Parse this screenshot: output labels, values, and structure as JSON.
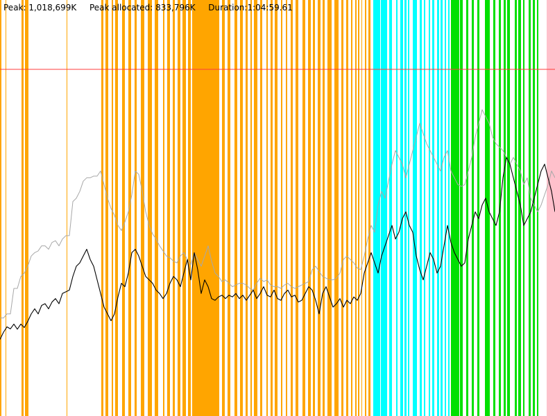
{
  "header": {
    "peak": "Peak: 1,018,699K",
    "peak_allocated": "Peak allocated: 833,796K",
    "duration": "Duration:1:04:59.61"
  },
  "chart_data": {
    "type": "line",
    "title": "",
    "xlabel": "",
    "ylabel": "",
    "x_range": [
      0,
      800
    ],
    "y_range": [
      0,
      1018699
    ],
    "grid": false,
    "legend": "none",
    "colors": {
      "background": "#ffffff",
      "peak_line": "#ff3b3b",
      "upper_series": "#a8a8a8",
      "main_series": "#000000",
      "orange": "#ffa500",
      "cyan": "#00ffff",
      "green": "#00e000",
      "pink": "#ffc0cb"
    },
    "bands": [
      {
        "color": "orange",
        "spans": [
          [
            0,
            2
          ],
          [
            8,
            9
          ],
          [
            31,
            34
          ],
          [
            36,
            41
          ],
          [
            96,
            97
          ],
          [
            146,
            149
          ],
          [
            152,
            156
          ],
          [
            161,
            163
          ],
          [
            166,
            170
          ],
          [
            176,
            180
          ],
          [
            185,
            189
          ],
          [
            194,
            197
          ],
          [
            203,
            208
          ],
          [
            213,
            219
          ],
          [
            223,
            228
          ],
          [
            235,
            237
          ],
          [
            241,
            245
          ],
          [
            249,
            252
          ],
          [
            256,
            260
          ],
          [
            263,
            268
          ],
          [
            271,
            275
          ],
          [
            277,
            316
          ],
          [
            320,
            324
          ],
          [
            328,
            332
          ],
          [
            338,
            342
          ],
          [
            346,
            350
          ],
          [
            354,
            357
          ],
          [
            361,
            363
          ],
          [
            366,
            371
          ],
          [
            375,
            378
          ],
          [
            384,
            386
          ],
          [
            390,
            393
          ],
          [
            396,
            400
          ],
          [
            405,
            407
          ],
          [
            412,
            414
          ],
          [
            419,
            422
          ],
          [
            426,
            430
          ],
          [
            436,
            440
          ],
          [
            444,
            448
          ],
          [
            451,
            454
          ],
          [
            458,
            462
          ],
          [
            465,
            468
          ],
          [
            472,
            478
          ],
          [
            482,
            488
          ],
          [
            492,
            495
          ],
          [
            499,
            502
          ],
          [
            506,
            508
          ],
          [
            512,
            514
          ],
          [
            516,
            518
          ],
          [
            521,
            522
          ],
          [
            526,
            528
          ],
          [
            531,
            534
          ]
        ]
      },
      {
        "color": "cyan",
        "spans": [
          [
            538,
            548
          ],
          [
            549,
            558
          ],
          [
            561,
            565
          ],
          [
            571,
            573
          ],
          [
            577,
            581
          ],
          [
            583,
            586
          ],
          [
            588,
            590
          ],
          [
            595,
            601
          ],
          [
            605,
            608
          ],
          [
            611,
            613
          ],
          [
            618,
            620
          ],
          [
            623,
            626
          ],
          [
            630,
            633
          ],
          [
            635,
            638
          ],
          [
            641,
            643
          ],
          [
            646,
            648
          ]
        ]
      },
      {
        "color": "green",
        "spans": [
          [
            650,
            662
          ],
          [
            663,
            667
          ],
          [
            672,
            675
          ],
          [
            680,
            683
          ],
          [
            688,
            691
          ],
          [
            699,
            706
          ],
          [
            711,
            714
          ],
          [
            719,
            722
          ],
          [
            726,
            729
          ],
          [
            731,
            735
          ],
          [
            742,
            745
          ],
          [
            747,
            751
          ],
          [
            754,
            756
          ],
          [
            762,
            765
          ],
          [
            768,
            771
          ],
          [
            774,
            776
          ]
        ]
      },
      {
        "color": "pink",
        "spans": [
          [
            788,
            800
          ]
        ]
      }
    ],
    "series": [
      {
        "id": "upper",
        "x": [
          0,
          5,
          10,
          15,
          20,
          25,
          30,
          35,
          40,
          45,
          50,
          55,
          60,
          65,
          70,
          75,
          80,
          85,
          90,
          95,
          100,
          105,
          110,
          115,
          120,
          125,
          130,
          135,
          140,
          145,
          150,
          155,
          160,
          165,
          170,
          175,
          180,
          185,
          190,
          195,
          200,
          205,
          210,
          215,
          220,
          225,
          230,
          235,
          240,
          245,
          250,
          255,
          260,
          265,
          270,
          275,
          280,
          285,
          290,
          295,
          300,
          305,
          310,
          315,
          320,
          325,
          330,
          335,
          340,
          345,
          350,
          355,
          360,
          365,
          370,
          375,
          380,
          385,
          390,
          395,
          400,
          405,
          410,
          415,
          420,
          425,
          430,
          435,
          440,
          445,
          450,
          455,
          460,
          465,
          470,
          475,
          480,
          485,
          490,
          495,
          500,
          505,
          510,
          515,
          520,
          525,
          530,
          535,
          540,
          545,
          550,
          555,
          560,
          565,
          570,
          575,
          580,
          585,
          590,
          595,
          600,
          605,
          610,
          615,
          620,
          625,
          630,
          635,
          640,
          645,
          650,
          655,
          660,
          665,
          670,
          675,
          680,
          685,
          690,
          695,
          700,
          705,
          710,
          715,
          720,
          725,
          730,
          735,
          740,
          745,
          750,
          755,
          760,
          765,
          770,
          775,
          780,
          785,
          790,
          795,
          800
        ],
        "y": [
          288000,
          288000,
          300000,
          300000,
          375000,
          375000,
          410000,
          420000,
          440000,
          470000,
          480000,
          485000,
          500000,
          500000,
          490000,
          510000,
          515000,
          500000,
          520000,
          530000,
          530000,
          630000,
          640000,
          660000,
          690000,
          700000,
          700000,
          705000,
          705000,
          720000,
          680000,
          640000,
          610000,
          590000,
          560000,
          545000,
          570000,
          600000,
          650000,
          720000,
          710000,
          660000,
          600000,
          560000,
          535000,
          520000,
          500000,
          485000,
          470000,
          465000,
          455000,
          450000,
          470000,
          480000,
          460000,
          445000,
          480000,
          460000,
          440000,
          470000,
          500000,
          455000,
          420000,
          410000,
          395000,
          400000,
          390000,
          380000,
          385000,
          390000,
          390000,
          385000,
          375000,
          370000,
          390000,
          405000,
          395000,
          400000,
          385000,
          380000,
          380000,
          375000,
          385000,
          390000,
          380000,
          375000,
          380000,
          385000,
          390000,
          395000,
          430000,
          440000,
          425000,
          410000,
          405000,
          400000,
          400000,
          405000,
          420000,
          460000,
          470000,
          460000,
          450000,
          435000,
          430000,
          470000,
          520000,
          560000,
          540000,
          620000,
          660000,
          640000,
          690000,
          740000,
          780000,
          760000,
          740000,
          700000,
          740000,
          780000,
          820000,
          860000,
          830000,
          800000,
          780000,
          760000,
          740000,
          720000,
          760000,
          780000,
          720000,
          700000,
          680000,
          675000,
          680000,
          720000,
          760000,
          820000,
          860000,
          900000,
          880000,
          860000,
          820000,
          800000,
          790000,
          780000,
          760000,
          740000,
          760000,
          740000,
          720000,
          680000,
          700000,
          640000,
          620000,
          600000,
          620000,
          650000,
          680000,
          720000,
          700000
        ]
      },
      {
        "id": "main",
        "x": [
          0,
          5,
          10,
          15,
          20,
          25,
          30,
          35,
          40,
          45,
          50,
          55,
          60,
          65,
          70,
          75,
          80,
          85,
          90,
          95,
          100,
          105,
          110,
          115,
          120,
          125,
          130,
          135,
          140,
          145,
          150,
          155,
          160,
          165,
          170,
          175,
          180,
          185,
          190,
          195,
          200,
          205,
          210,
          215,
          220,
          225,
          230,
          235,
          240,
          245,
          250,
          255,
          260,
          265,
          270,
          275,
          280,
          285,
          290,
          295,
          300,
          305,
          310,
          315,
          320,
          325,
          330,
          335,
          340,
          345,
          350,
          355,
          360,
          365,
          370,
          375,
          380,
          385,
          390,
          395,
          400,
          405,
          410,
          415,
          420,
          425,
          430,
          435,
          440,
          445,
          450,
          455,
          460,
          465,
          470,
          475,
          480,
          485,
          490,
          495,
          500,
          505,
          510,
          515,
          520,
          525,
          530,
          535,
          540,
          545,
          550,
          555,
          560,
          565,
          570,
          575,
          580,
          585,
          590,
          595,
          600,
          605,
          610,
          615,
          620,
          625,
          630,
          635,
          640,
          645,
          650,
          655,
          660,
          665,
          670,
          675,
          680,
          685,
          690,
          695,
          700,
          705,
          710,
          715,
          720,
          725,
          730,
          735,
          740,
          745,
          750,
          755,
          760,
          765,
          770,
          775,
          780,
          785,
          790,
          795,
          800
        ],
        "y": [
          225000,
          246000,
          262000,
          256000,
          270000,
          255000,
          270000,
          260000,
          278000,
          300000,
          315000,
          300000,
          325000,
          330000,
          315000,
          335000,
          345000,
          330000,
          360000,
          365000,
          370000,
          410000,
          440000,
          450000,
          470000,
          490000,
          460000,
          440000,
          400000,
          360000,
          320000,
          300000,
          280000,
          300000,
          350000,
          390000,
          380000,
          420000,
          480000,
          490000,
          470000,
          440000,
          410000,
          400000,
          390000,
          370000,
          360000,
          345000,
          360000,
          390000,
          410000,
          400000,
          380000,
          420000,
          460000,
          400000,
          480000,
          430000,
          360000,
          400000,
          380000,
          345000,
          340000,
          350000,
          355000,
          345000,
          355000,
          350000,
          360000,
          345000,
          355000,
          340000,
          355000,
          370000,
          345000,
          360000,
          380000,
          355000,
          350000,
          370000,
          345000,
          340000,
          360000,
          370000,
          350000,
          355000,
          335000,
          340000,
          360000,
          380000,
          370000,
          340000,
          300000,
          360000,
          380000,
          350000,
          320000,
          330000,
          345000,
          320000,
          340000,
          330000,
          350000,
          340000,
          360000,
          420000,
          450000,
          480000,
          450000,
          420000,
          470000,
          500000,
          530000,
          560000,
          520000,
          540000,
          580000,
          600000,
          560000,
          540000,
          470000,
          430000,
          400000,
          440000,
          480000,
          460000,
          420000,
          440000,
          500000,
          560000,
          510000,
          480000,
          460000,
          440000,
          450000,
          520000,
          560000,
          600000,
          580000,
          620000,
          640000,
          600000,
          580000,
          560000,
          600000,
          700000,
          760000,
          740000,
          700000,
          660000,
          620000,
          560000,
          580000,
          600000,
          640000,
          680000,
          720000,
          740000,
          700000,
          660000,
          600000
        ]
      }
    ]
  }
}
